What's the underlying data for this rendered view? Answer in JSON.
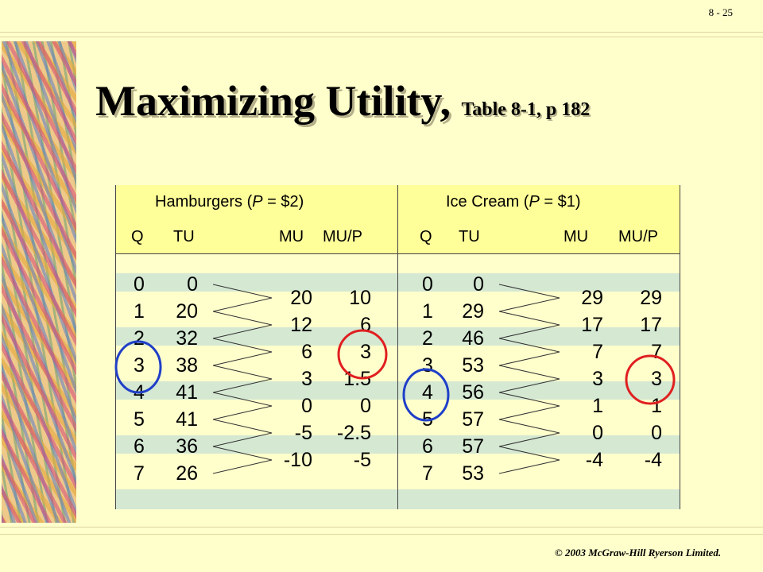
{
  "page_number": "8 - 25",
  "title": "Maximizing Utility,",
  "title_ref": "Table 8-1, p 182",
  "copyright": "© 2003 McGraw-Hill Ryerson Limited.",
  "colors": {
    "background": "#ffffcc",
    "header": "#ffff99",
    "band": "#d4e8d2",
    "blue_circle": "#1f3fc8",
    "red_circle": "#e02020"
  },
  "hamburgers": {
    "title_prefix": "Hamburgers  (",
    "title_p": "P",
    "title_suffix": " = $2)",
    "headers": {
      "q": "Q",
      "tu": "TU",
      "mu": "MU",
      "mup": "MU/P"
    },
    "q": [
      "0",
      "1",
      "2",
      "3",
      "4",
      "5",
      "6",
      "7"
    ],
    "tu": [
      "0",
      "20",
      "32",
      "38",
      "41",
      "41",
      "36",
      "26"
    ],
    "mu": [
      "20",
      "12",
      "6",
      "3",
      "0",
      "-5",
      "-10"
    ],
    "mup": [
      "10",
      "6",
      "3",
      "1.5",
      "0",
      "-2.5",
      "-5"
    ]
  },
  "icecream": {
    "title_prefix": "Ice Cream  (",
    "title_p": "P",
    "title_suffix": " = $1)",
    "headers": {
      "q": "Q",
      "tu": "TU",
      "mu": "MU",
      "mup": "MU/P"
    },
    "q": [
      "0",
      "1",
      "2",
      "3",
      "4",
      "5",
      "6",
      "7"
    ],
    "tu": [
      "0",
      "29",
      "46",
      "53",
      "56",
      "57",
      "57",
      "53"
    ],
    "mu": [
      "29",
      "17",
      "7",
      "3",
      "1",
      "0",
      "-4"
    ],
    "mup": [
      "29",
      "17",
      "7",
      "3",
      "1",
      "0",
      "-4"
    ]
  }
}
